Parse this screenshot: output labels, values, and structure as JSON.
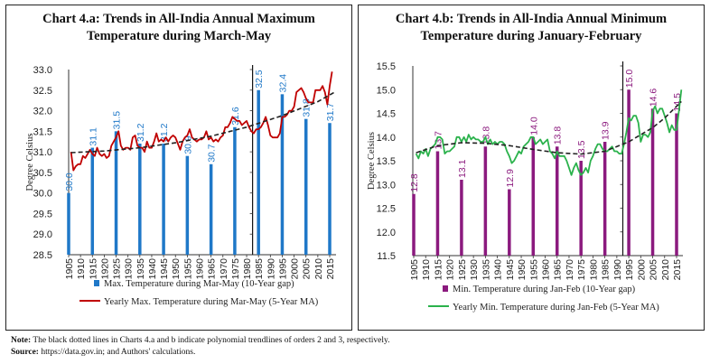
{
  "footer": {
    "note_label": "Note:",
    "note_text": " The black dotted lines in Charts 4.a and b indicate polynomial trendlines of orders 2 and 3, respectively.",
    "source_label": "Source:",
    "source_text": " https://data.gov.in; and Authors' calculations."
  },
  "chart_data": [
    {
      "type": "bar+line",
      "title_line1": "Chart 4.a: Trends in All-India Annual Maximum",
      "title_line2": "Temperature during March-May",
      "ylabel": "Degree Celsius",
      "ylim": [
        28.5,
        33.0
      ],
      "yticks": [
        "28.5",
        "29.0",
        "29.5",
        "30.0",
        "30.5",
        "31.0",
        "31.5",
        "32.0",
        "32.5",
        "33.0"
      ],
      "xticks": [
        "1905",
        "1910",
        "1915",
        "1920",
        "1925",
        "1930",
        "1935",
        "1940",
        "1945",
        "1950",
        "1955",
        "1960",
        "1965",
        "1970",
        "1975",
        "1980",
        "1985",
        "1990",
        "1995",
        "2000",
        "2005",
        "2010",
        "2015"
      ],
      "divider_year": 1982.5,
      "bar_color": "#1f78c8",
      "line_color": "#c00000",
      "trend_color": "#222222",
      "bars": {
        "name": "Max. Temperature during Mar-May (10-Year gap)",
        "x": [
          1905,
          1915,
          1925,
          1935,
          1945,
          1955,
          1965,
          1975,
          1985,
          1995,
          2005,
          2015
        ],
        "values": [
          30.0,
          31.1,
          31.5,
          31.2,
          31.2,
          30.9,
          30.7,
          31.6,
          32.5,
          32.4,
          31.8,
          31.7
        ]
      },
      "line": {
        "name": "Yearly Max. Temperature during Mar-May (5-Year MA)",
        "x": [
          1906,
          1907,
          1908,
          1909,
          1910,
          1911,
          1912,
          1913,
          1914,
          1915,
          1916,
          1917,
          1918,
          1919,
          1920,
          1921,
          1922,
          1923,
          1924,
          1925,
          1926,
          1927,
          1928,
          1929,
          1930,
          1931,
          1932,
          1933,
          1934,
          1935,
          1936,
          1937,
          1938,
          1939,
          1940,
          1941,
          1942,
          1943,
          1944,
          1945,
          1946,
          1947,
          1948,
          1949,
          1950,
          1951,
          1952,
          1953,
          1954,
          1955,
          1956,
          1957,
          1958,
          1959,
          1960,
          1961,
          1962,
          1963,
          1964,
          1965,
          1966,
          1967,
          1968,
          1969,
          1970,
          1971,
          1972,
          1973,
          1974,
          1975,
          1976,
          1977,
          1978,
          1979,
          1980,
          1981,
          1982,
          1983,
          1984,
          1985,
          1986,
          1987,
          1988,
          1989,
          1990,
          1991,
          1992,
          1993,
          1994,
          1995,
          1996,
          1997,
          1998,
          1999,
          2000,
          2001,
          2002,
          2003,
          2004,
          2005,
          2006,
          2007,
          2008,
          2009,
          2010,
          2011,
          2012,
          2013,
          2014,
          2015,
          2016
        ],
        "values": [
          31.0,
          30.55,
          30.65,
          30.7,
          30.7,
          30.9,
          30.85,
          30.95,
          31.05,
          30.95,
          30.9,
          31.1,
          30.95,
          30.9,
          30.95,
          30.85,
          30.9,
          31.15,
          31.25,
          31.35,
          31.5,
          31.15,
          31.05,
          31.1,
          31.1,
          31.05,
          31.35,
          31.4,
          31.15,
          31.1,
          31.1,
          31.0,
          31.25,
          31.1,
          31.1,
          31.25,
          31.45,
          31.25,
          31.3,
          31.25,
          31.35,
          31.25,
          31.35,
          31.4,
          31.35,
          31.2,
          31.05,
          31.25,
          31.35,
          31.4,
          31.55,
          31.35,
          31.3,
          31.25,
          31.3,
          31.3,
          31.35,
          31.5,
          31.3,
          31.35,
          31.25,
          31.3,
          31.25,
          31.35,
          31.4,
          31.6,
          31.6,
          31.7,
          31.85,
          31.8,
          31.75,
          31.75,
          31.65,
          31.7,
          31.75,
          31.6,
          31.5,
          31.45,
          31.55,
          31.55,
          31.6,
          31.7,
          31.85,
          31.65,
          31.4,
          31.35,
          31.35,
          31.35,
          31.45,
          31.85,
          31.85,
          31.9,
          32.0,
          32.0,
          32.1,
          32.45,
          32.5,
          32.55,
          32.45,
          32.3,
          32.2,
          32.2,
          32.2,
          32.5,
          32.5,
          32.5,
          32.6,
          32.45,
          32.15,
          32.6,
          32.95
        ]
      },
      "trend": {
        "x": [
          1906,
          1920,
          1935,
          1950,
          1965,
          1980,
          1995,
          2010,
          2017
        ],
        "values": [
          30.98,
          31.02,
          31.1,
          31.22,
          31.38,
          31.6,
          31.88,
          32.22,
          32.45
        ]
      }
    },
    {
      "type": "bar+line",
      "title_line1": "Chart 4.b: Trends in All-India Annual Minimum",
      "title_line2": "Temperature during January-February",
      "ylabel": "Degree Celsius",
      "ylim": [
        11.5,
        15.5
      ],
      "yticks": [
        "11.5",
        "12.0",
        "12.5",
        "13.0",
        "13.5",
        "14.0",
        "14.5",
        "15.0",
        "15.5"
      ],
      "xticks": [
        "1905",
        "1910",
        "1915",
        "1920",
        "1925",
        "1930",
        "1935",
        "1940",
        "1945",
        "1950",
        "1955",
        "1960",
        "1965",
        "1970",
        "1975",
        "1980",
        "1985",
        "1990",
        "1995",
        "2000",
        "2005",
        "2010",
        "2015"
      ],
      "divider_year": 1992.5,
      "bar_color": "#8b1a7e",
      "line_color": "#2bb24c",
      "trend_color": "#222222",
      "bars": {
        "name": "Min. Temperature during Jan-Feb (10-Year gap)",
        "x": [
          1905,
          1915,
          1925,
          1935,
          1945,
          1955,
          1965,
          1975,
          1985,
          1995,
          2005,
          2015
        ],
        "values": [
          12.8,
          13.7,
          13.1,
          13.8,
          12.9,
          14.0,
          13.8,
          13.5,
          13.9,
          15.0,
          14.6,
          14.5
        ]
      },
      "line": {
        "name": "Yearly Min. Temperature during Jan-Feb (5-Year MA)",
        "x": [
          1906,
          1907,
          1908,
          1909,
          1910,
          1911,
          1912,
          1913,
          1914,
          1915,
          1916,
          1917,
          1918,
          1919,
          1920,
          1921,
          1922,
          1923,
          1924,
          1925,
          1926,
          1927,
          1928,
          1929,
          1930,
          1931,
          1932,
          1933,
          1934,
          1935,
          1936,
          1937,
          1938,
          1939,
          1940,
          1941,
          1942,
          1943,
          1944,
          1945,
          1946,
          1947,
          1948,
          1949,
          1950,
          1951,
          1952,
          1953,
          1954,
          1955,
          1956,
          1957,
          1958,
          1959,
          1960,
          1961,
          1962,
          1963,
          1964,
          1965,
          1966,
          1967,
          1968,
          1969,
          1970,
          1971,
          1972,
          1973,
          1974,
          1975,
          1976,
          1977,
          1978,
          1979,
          1980,
          1981,
          1982,
          1983,
          1984,
          1985,
          1986,
          1987,
          1988,
          1989,
          1990,
          1991,
          1992,
          1993,
          1994,
          1995,
          1996,
          1997,
          1998,
          1999,
          2000,
          2001,
          2002,
          2003,
          2004,
          2005,
          2006,
          2007,
          2008,
          2009,
          2010,
          2011,
          2012,
          2013,
          2014,
          2015,
          2016,
          2017
        ],
        "values": [
          13.65,
          13.55,
          13.7,
          13.65,
          13.75,
          13.6,
          13.75,
          13.8,
          13.85,
          14.0,
          14.0,
          13.95,
          13.65,
          13.7,
          13.7,
          13.75,
          13.8,
          14.0,
          14.0,
          13.9,
          14.0,
          13.9,
          14.05,
          13.95,
          14.0,
          13.95,
          13.95,
          13.9,
          13.9,
          14.0,
          13.85,
          13.95,
          13.85,
          13.9,
          13.85,
          13.9,
          13.9,
          13.85,
          13.7,
          13.6,
          13.45,
          13.5,
          13.6,
          13.7,
          13.65,
          13.8,
          13.85,
          13.9,
          14.0,
          14.0,
          13.85,
          13.9,
          13.95,
          13.85,
          13.9,
          13.95,
          13.7,
          13.65,
          13.55,
          13.7,
          13.6,
          13.6,
          13.6,
          13.5,
          13.35,
          13.2,
          13.35,
          13.45,
          13.3,
          13.2,
          13.25,
          13.35,
          13.25,
          13.5,
          13.6,
          13.75,
          13.85,
          13.85,
          13.75,
          13.7,
          13.7,
          13.75,
          13.8,
          13.7,
          13.7,
          13.65,
          13.65,
          13.85,
          14.1,
          14.4,
          14.35,
          14.45,
          14.45,
          14.3,
          13.9,
          14.05,
          14.05,
          14.0,
          14.1,
          14.55,
          14.65,
          14.5,
          14.6,
          14.6,
          14.45,
          14.3,
          14.1,
          14.25,
          14.15,
          14.15,
          14.55,
          15.0
        ]
      },
      "trend": {
        "x": [
          1906,
          1915,
          1925,
          1935,
          1945,
          1955,
          1965,
          1975,
          1985,
          1995,
          2005,
          2010,
          2017
        ],
        "values": [
          13.67,
          13.82,
          13.88,
          13.87,
          13.82,
          13.74,
          13.67,
          13.64,
          13.7,
          13.9,
          14.2,
          14.4,
          14.75
        ]
      }
    }
  ]
}
